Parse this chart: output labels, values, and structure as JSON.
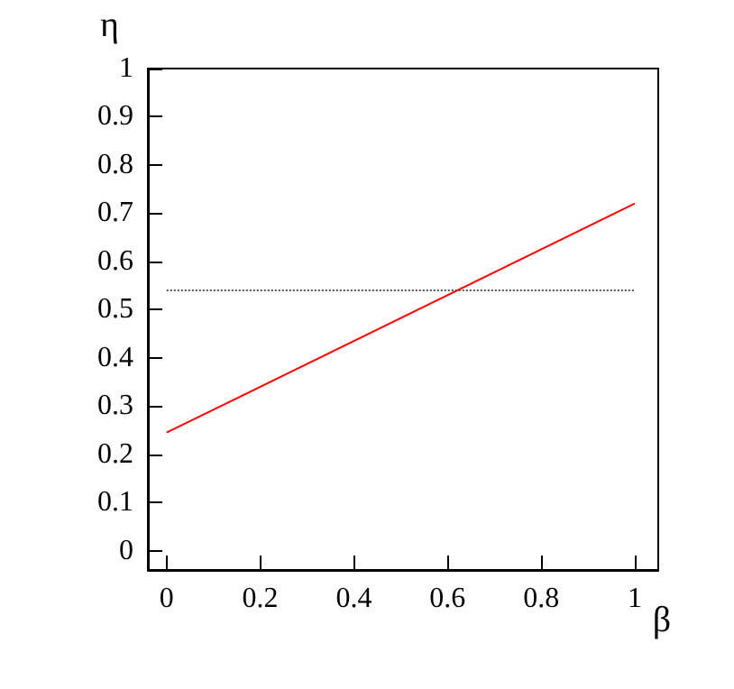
{
  "chart_data": {
    "type": "line",
    "xlabel": "β",
    "ylabel": "η",
    "xlim": [
      -0.04,
      1.05
    ],
    "xticks": [
      0,
      0.2,
      0.4,
      0.6,
      0.8,
      1
    ],
    "ylim": [
      -0.04,
      1
    ],
    "yticks": [
      0,
      0.1,
      0.2,
      0.3,
      0.4,
      0.5,
      0.6,
      0.7,
      0.8,
      0.9,
      1
    ],
    "x": [
      0,
      1
    ],
    "series": [
      {
        "color": "#ff0000",
        "values": [
          0.245,
          0.72
        ],
        "line_style": "solid"
      },
      {
        "color": "#555555",
        "values": [
          0.54,
          0.54
        ],
        "line_style": "dotted"
      }
    ],
    "marker": "none"
  }
}
